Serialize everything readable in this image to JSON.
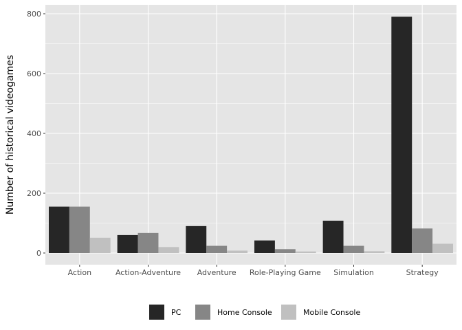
{
  "chart_data": {
    "type": "bar",
    "categories": [
      "Action",
      "Action-Adventure",
      "Adventure",
      "Role-Playing Game",
      "Simulation",
      "Strategy"
    ],
    "series": [
      {
        "name": "PC",
        "values": [
          155,
          60,
          90,
          42,
          108,
          790
        ],
        "color": "#262626"
      },
      {
        "name": "Home Console",
        "values": [
          155,
          67,
          24,
          13,
          24,
          82
        ],
        "color": "#868686"
      },
      {
        "name": "Mobile Console",
        "values": [
          51,
          20,
          8,
          5,
          6,
          31
        ],
        "color": "#c0c0c0"
      }
    ],
    "ylabel": "Number of historical videogames",
    "xlabel": "",
    "ylim": [
      0,
      800
    ],
    "yticks": [
      0,
      200,
      400,
      600,
      800
    ],
    "grid": true,
    "legend_position": "bottom",
    "panel_color": "#e5e5e5"
  }
}
